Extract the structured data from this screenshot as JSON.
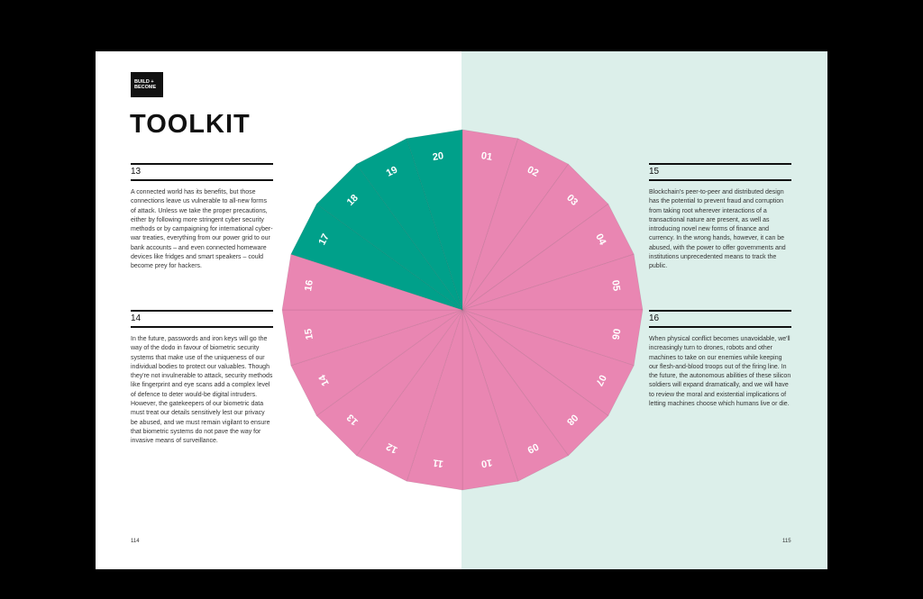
{
  "header": {
    "logo": [
      "BUILD +",
      "BECOME"
    ],
    "title": "TOOLKIT"
  },
  "sections": [
    {
      "number": "13",
      "text": "A connected world has its benefits, but those connections leave us vulnerable to all-new forms of attack. Unless we take the proper precautions, either by following more stringent cyber security methods or by campaigning for international cyber-war treaties, everything from our power grid to our bank accounts – and even connected homeware devices like fridges and smart speakers – could become prey for hackers."
    },
    {
      "number": "14",
      "text": "In the future, passwords and iron keys will go the way of the dodo in favour of biometric security systems that make use of the uniqueness of our individual bodies to protect our valuables. Though they're not invulnerable to attack, security methods like fingerprint and eye scans add a complex level of defence to deter would-be digital intruders. However, the gatekeepers of our biometric data must treat our details sensitively lest our privacy be abused, and we must remain vigilant to ensure that biometric systems do not pave the way for invasive means of surveillance."
    },
    {
      "number": "15",
      "text": "Blockchain's peer-to-peer and distributed design has the potential to prevent fraud and corruption from taking root wherever interactions of a transactional nature are present, as well as introducing novel new forms of finance and currency. In the wrong hands, however, it can be abused, with the power to offer governments and institutions unprecedented means to track the public."
    },
    {
      "number": "16",
      "text": "When physical conflict becomes unavoidable, we'll increasingly turn to drones, robots and other machines to take on our enemies while keeping our flesh-and-blood troops out of the firing line. In the future, the autonomous abilities of these silicon soldiers will expand dramatically, and we will have to review the moral and existential implications of letting machines choose which humans live or die."
    }
  ],
  "wheel": {
    "labels": [
      "01",
      "02",
      "03",
      "04",
      "05",
      "06",
      "07",
      "08",
      "09",
      "10",
      "11",
      "12",
      "13",
      "14",
      "15",
      "16",
      "17",
      "18",
      "19",
      "20"
    ],
    "color": "#e986b2",
    "highlight_color": "#00a08a",
    "highlighted": [
      "17",
      "18",
      "19",
      "20"
    ]
  },
  "page_numbers": [
    "114",
    "115"
  ]
}
